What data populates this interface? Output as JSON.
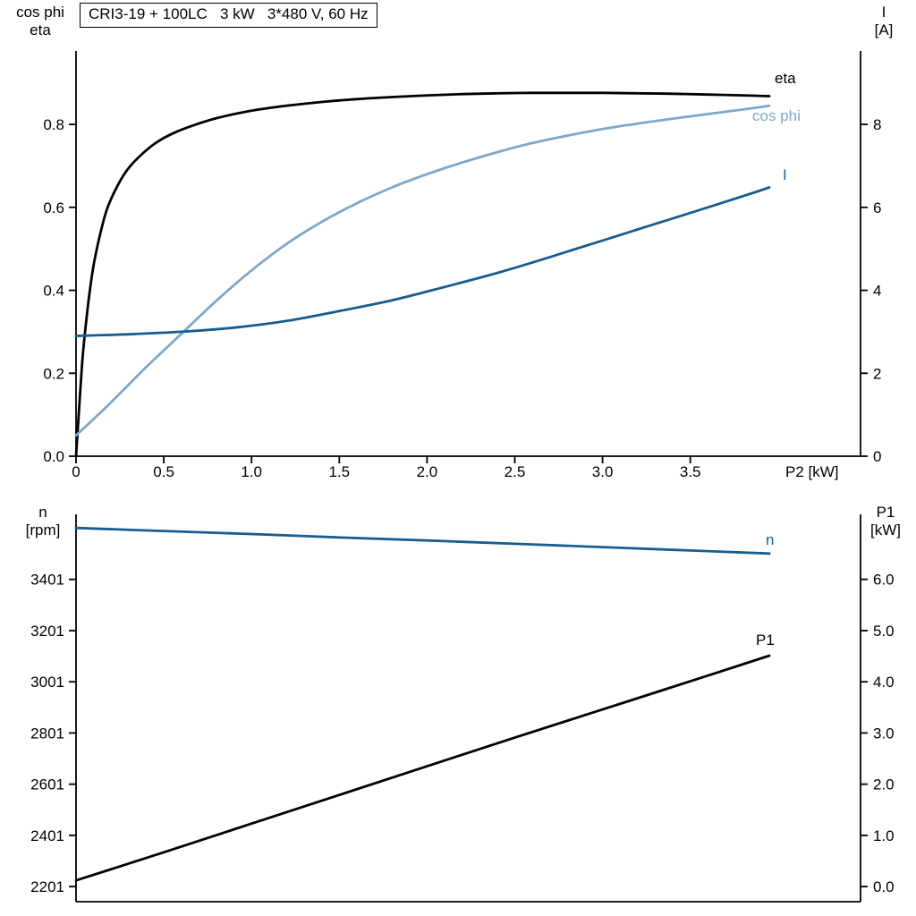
{
  "title": "CRI3-19 + 100LC   3 kW   3*480 V, 60 Hz",
  "chart_data": [
    {
      "type": "line",
      "xlabel": "P2 [kW]",
      "xlim": [
        0,
        4.47
      ],
      "grid": false,
      "x_ticks": {
        "values": [
          0,
          0.5,
          1,
          1.5,
          2,
          2.5,
          3,
          3.5
        ],
        "labels": [
          "0",
          "0.5",
          "1.0",
          "1.5",
          "2.0",
          "2.5",
          "3.0",
          "3.5"
        ]
      },
      "left_axis": {
        "title_lines": [
          "cos phi",
          "eta"
        ],
        "lim": [
          0,
          0.977
        ],
        "ticks": {
          "values": [
            0,
            0.2,
            0.4,
            0.6,
            0.8
          ],
          "labels": [
            "0.0",
            "0.2",
            "0.4",
            "0.6",
            "0.8"
          ]
        }
      },
      "right_axis": {
        "title_lines": [
          "I",
          "[A]"
        ],
        "lim": [
          0,
          9.77
        ],
        "ticks": {
          "values": [
            0,
            2,
            4,
            6,
            8
          ],
          "labels": [
            "0",
            "2",
            "4",
            "6",
            "8"
          ]
        }
      },
      "series": [
        {
          "name": "eta",
          "axis": "left",
          "color": "#000000",
          "points": [
            [
              0,
              0
            ],
            [
              0.02,
              0.13
            ],
            [
              0.04,
              0.25
            ],
            [
              0.07,
              0.37
            ],
            [
              0.1,
              0.46
            ],
            [
              0.14,
              0.54
            ],
            [
              0.18,
              0.6
            ],
            [
              0.24,
              0.655
            ],
            [
              0.3,
              0.695
            ],
            [
              0.38,
              0.73
            ],
            [
              0.46,
              0.757
            ],
            [
              0.55,
              0.778
            ],
            [
              0.65,
              0.795
            ],
            [
              0.8,
              0.815
            ],
            [
              1,
              0.833
            ],
            [
              1.2,
              0.845
            ],
            [
              1.4,
              0.854
            ],
            [
              1.6,
              0.861
            ],
            [
              1.8,
              0.866
            ],
            [
              2,
              0.87
            ],
            [
              2.2,
              0.873
            ],
            [
              2.4,
              0.875
            ],
            [
              2.6,
              0.876
            ],
            [
              2.8,
              0.876
            ],
            [
              3,
              0.876
            ],
            [
              3.2,
              0.875
            ],
            [
              3.4,
              0.874
            ],
            [
              3.6,
              0.872
            ],
            [
              3.8,
              0.87
            ],
            [
              3.95,
              0.868
            ]
          ]
        },
        {
          "name": "cos phi",
          "axis": "left",
          "color": "#7ea7c9",
          "points": [
            [
              0,
              0.05
            ],
            [
              0.2,
              0.13
            ],
            [
              0.4,
              0.215
            ],
            [
              0.6,
              0.295
            ],
            [
              0.8,
              0.375
            ],
            [
              1,
              0.448
            ],
            [
              1.2,
              0.512
            ],
            [
              1.4,
              0.565
            ],
            [
              1.6,
              0.61
            ],
            [
              1.8,
              0.648
            ],
            [
              2,
              0.68
            ],
            [
              2.2,
              0.708
            ],
            [
              2.4,
              0.733
            ],
            [
              2.6,
              0.755
            ],
            [
              2.8,
              0.773
            ],
            [
              3,
              0.789
            ],
            [
              3.2,
              0.802
            ],
            [
              3.4,
              0.814
            ],
            [
              3.6,
              0.825
            ],
            [
              3.8,
              0.836
            ],
            [
              3.95,
              0.845
            ]
          ]
        },
        {
          "name": "I",
          "axis": "right",
          "color": "#175d8d",
          "points": [
            [
              0,
              2.9
            ],
            [
              0.3,
              2.94
            ],
            [
              0.6,
              3.0
            ],
            [
              0.9,
              3.1
            ],
            [
              1.2,
              3.26
            ],
            [
              1.5,
              3.5
            ],
            [
              1.8,
              3.76
            ],
            [
              2.1,
              4.08
            ],
            [
              2.4,
              4.42
            ],
            [
              2.7,
              4.8
            ],
            [
              3,
              5.2
            ],
            [
              3.3,
              5.6
            ],
            [
              3.6,
              6.0
            ],
            [
              3.8,
              6.27
            ],
            [
              3.95,
              6.48
            ]
          ]
        }
      ]
    },
    {
      "type": "line",
      "xlabel": "",
      "xlim": [
        0,
        4.47
      ],
      "grid": false,
      "left_axis": {
        "title_lines": [
          "n",
          "[rpm]"
        ],
        "lim": [
          2142,
          3655
        ],
        "ticks": {
          "values": [
            2201,
            2401,
            2601,
            2801,
            3001,
            3201,
            3401
          ],
          "labels": [
            "2201",
            "2401",
            "2601",
            "2801",
            "3001",
            "3201",
            "3401"
          ]
        }
      },
      "right_axis": {
        "title_lines": [
          "P1",
          "[kW]"
        ],
        "lim": [
          -0.295,
          7.27
        ],
        "ticks": {
          "values": [
            0,
            1,
            2,
            3,
            4,
            5,
            6
          ],
          "labels": [
            "0.0",
            "1.0",
            "2.0",
            "3.0",
            "4.0",
            "5.0",
            "6.0"
          ]
        }
      },
      "series": [
        {
          "name": "n",
          "axis": "left",
          "color": "#175d8d",
          "points": [
            [
              0,
              3602
            ],
            [
              0.5,
              3590
            ],
            [
              1,
              3578
            ],
            [
              1.5,
              3565
            ],
            [
              2,
              3553
            ],
            [
              2.5,
              3540
            ],
            [
              3,
              3527
            ],
            [
              3.5,
              3514
            ],
            [
              3.95,
              3502
            ]
          ]
        },
        {
          "name": "P1",
          "axis": "right",
          "color": "#000000",
          "points": [
            [
              0,
              0.12
            ],
            [
              0.5,
              0.67
            ],
            [
              1,
              1.23
            ],
            [
              1.5,
              1.79
            ],
            [
              2,
              2.35
            ],
            [
              2.5,
              2.91
            ],
            [
              3,
              3.46
            ],
            [
              3.5,
              4.01
            ],
            [
              3.95,
              4.51
            ]
          ]
        }
      ]
    }
  ]
}
